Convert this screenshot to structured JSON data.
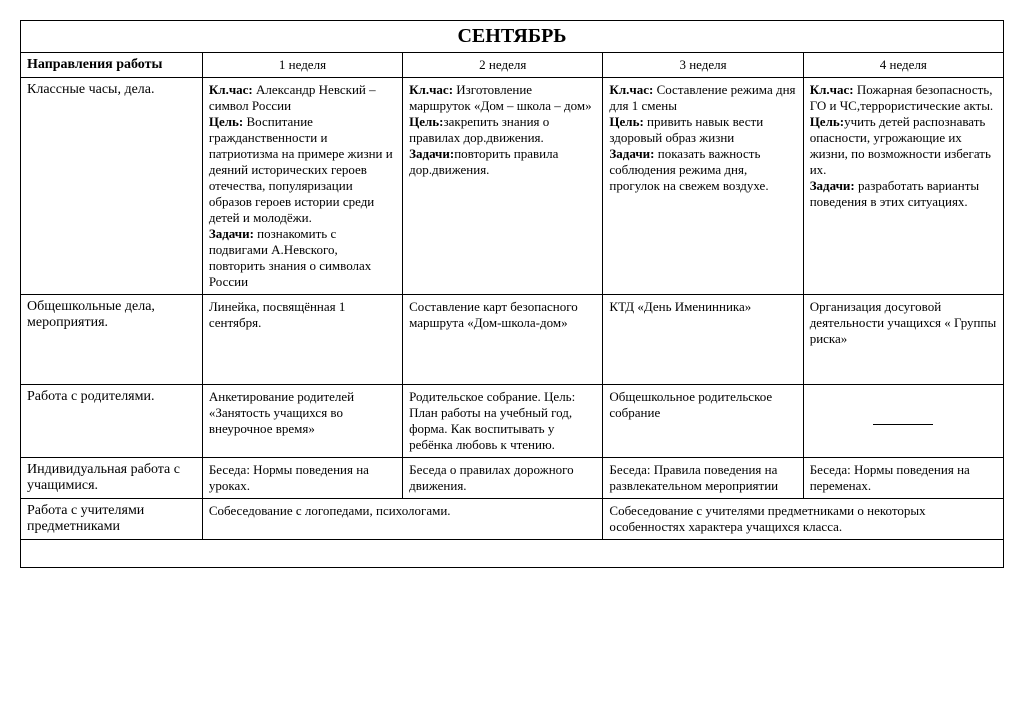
{
  "title": "СЕНТЯБРЬ",
  "header": {
    "label": "Направления работы",
    "weeks": [
      "1 неделя",
      "2 неделя",
      "3 неделя",
      "4 неделя"
    ]
  },
  "rows": [
    {
      "label": "Классные часы, дела.",
      "cells": [
        {
          "segments": [
            {
              "bold": true,
              "text": "Кл.час: "
            },
            {
              "bold": false,
              "text": "Александр Невский – символ России"
            },
            {
              "break": true
            },
            {
              "bold": true,
              "text": "Цель: "
            },
            {
              "bold": false,
              "text": "Воспитание гражданственности и патриотизма на примере жизни и деяний исторических героев отечества, популяризации образов героев истории среди детей и молодёжи."
            },
            {
              "break": true
            },
            {
              "bold": true,
              "text": "Задачи: "
            },
            {
              "bold": false,
              "text": "познакомить с подвигами А.Невского, повторить знания о символах России"
            }
          ]
        },
        {
          "segments": [
            {
              "bold": true,
              "text": "Кл.час: "
            },
            {
              "bold": false,
              "text": "Изготовление маршруток «Дом – школа – дом»"
            },
            {
              "break": true
            },
            {
              "bold": true,
              "text": "Цель:"
            },
            {
              "bold": false,
              "text": "закрепить знания о правилах дор.движения."
            },
            {
              "break": true
            },
            {
              "bold": true,
              "text": "Задачи:"
            },
            {
              "bold": false,
              "text": "повторить правила дор.движения."
            }
          ]
        },
        {
          "segments": [
            {
              "bold": true,
              "text": "Кл.час: "
            },
            {
              "bold": false,
              "text": "Составление режима дня для 1 смены"
            },
            {
              "break": true
            },
            {
              "bold": true,
              "text": "Цель: "
            },
            {
              "bold": false,
              "text": "привить навык вести здоровый образ жизни"
            },
            {
              "break": true
            },
            {
              "bold": true,
              "text": "Задачи: "
            },
            {
              "bold": false,
              "text": "показать важность соблюдения режима дня, прогулок на свежем воздухе."
            }
          ]
        },
        {
          "segments": [
            {
              "bold": true,
              "text": "Кл.час: "
            },
            {
              "bold": false,
              "text": "Пожарная безопасность, ГО и ЧС,террористические акты."
            },
            {
              "break": true
            },
            {
              "bold": true,
              "text": "Цель:"
            },
            {
              "bold": false,
              "text": "учить детей распознавать опасности, угрожающие их жизни, по возможности избегать их."
            },
            {
              "break": true
            },
            {
              "bold": true,
              "text": "Задачи: "
            },
            {
              "bold": false,
              "text": "разработать варианты поведения в этих ситуациях."
            }
          ]
        }
      ]
    },
    {
      "label": "Общешкольные дела, мероприятия.",
      "tall": true,
      "cells": [
        {
          "segments": [
            {
              "bold": false,
              "text": "Линейка, посвящённая 1 сентября."
            }
          ]
        },
        {
          "segments": [
            {
              "bold": false,
              "text": "Составление карт безопасного маршрута «Дом-школа-дом»"
            }
          ]
        },
        {
          "segments": [
            {
              "bold": false,
              "text": "КТД «День Именинника»"
            }
          ]
        },
        {
          "segments": [
            {
              "bold": false,
              "text": "Организация досуговой деятельности учащихся « Группы риска»"
            }
          ]
        }
      ]
    },
    {
      "label": "Работа с родителями.",
      "cells": [
        {
          "segments": [
            {
              "bold": false,
              "text": "Анкетирование родителей «Занятость учащихся во внеурочное время»"
            }
          ]
        },
        {
          "segments": [
            {
              "bold": false,
              "text": "Родительское собрание. Цель: План работы на учебный год, форма. Как воспитывать у ребёнка любовь к чтению."
            }
          ]
        },
        {
          "segments": [
            {
              "bold": false,
              "text": "Общешкольное родительское собрание"
            }
          ]
        },
        {
          "dash": true
        }
      ]
    },
    {
      "label": "Индивидуальная работа с учащимися.",
      "cells": [
        {
          "segments": [
            {
              "bold": false,
              "text": "Беседа: Нормы поведения на уроках."
            }
          ]
        },
        {
          "segments": [
            {
              "bold": false,
              "text": "Беседа о правилах дорожного движения."
            }
          ]
        },
        {
          "segments": [
            {
              "bold": false,
              "text": "Беседа: Правила поведения на развлекательном мероприятии"
            }
          ]
        },
        {
          "segments": [
            {
              "bold": false,
              "text": "Беседа: Нормы поведения на переменах."
            }
          ]
        }
      ]
    },
    {
      "label": "Работа с учителями предметниками",
      "merged": [
        {
          "span": 2,
          "segments": [
            {
              "bold": false,
              "text": "Собеседование с логопедами, психологами."
            }
          ]
        },
        {
          "span": 2,
          "segments": [
            {
              "bold": false,
              "text": "Собеседование с учителями предметниками о некоторых особенностях характера учащихся класса."
            }
          ]
        }
      ]
    }
  ]
}
